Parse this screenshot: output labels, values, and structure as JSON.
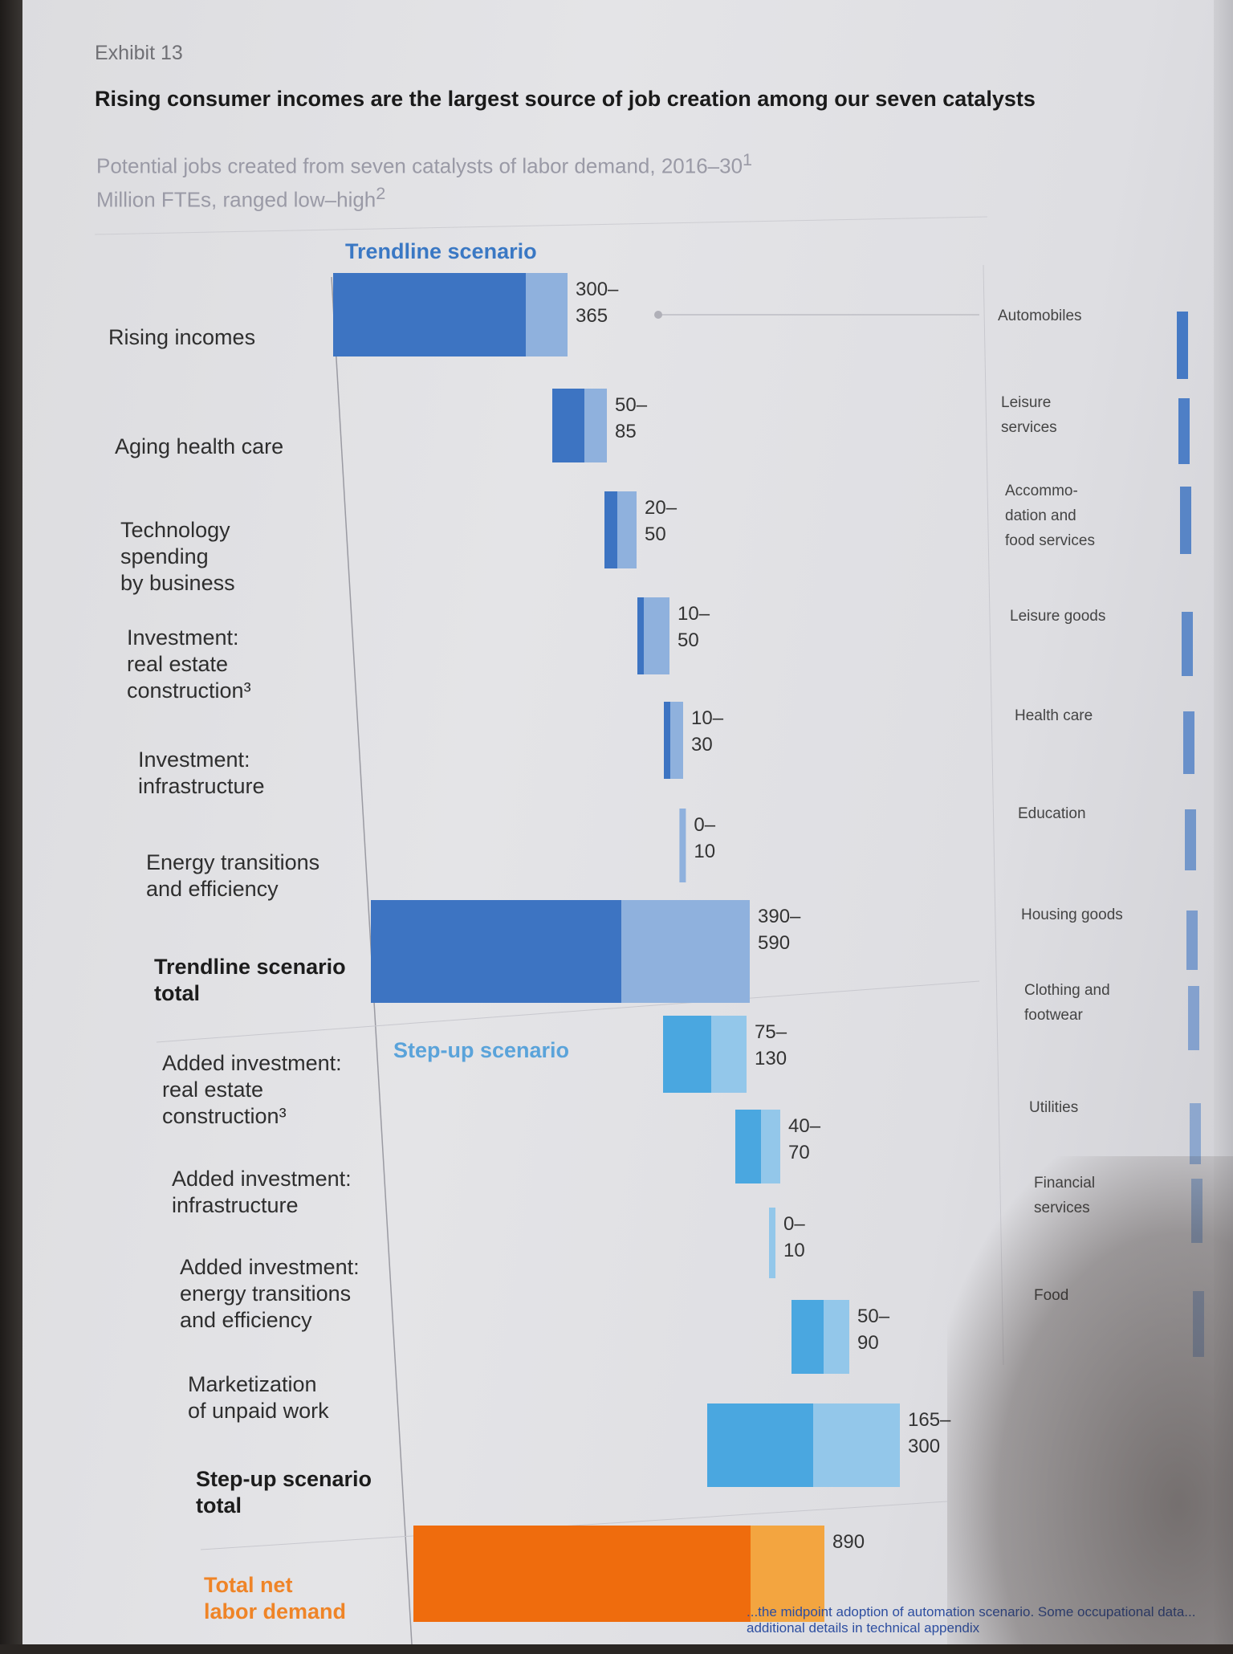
{
  "exhibit": "Exhibit 13",
  "title": "Rising consumer incomes are the largest source of job creation among our seven catalysts",
  "subtitle_line1": "Potential jobs created from seven catalysts of labor demand, 2016–30",
  "subtitle_sup1": "1",
  "subtitle_line2": "Million FTEs, ranged low–high",
  "subtitle_sup2": "2",
  "trendline_label": "Trendline scenario",
  "stepup_label": "Step-up scenario",
  "colors": {
    "trend_dark": "#3d74c2",
    "trend_light": "#8fb1dd",
    "step_dark": "#4aa7e0",
    "step_light": "#93c7ea",
    "net_dark": "#ef6c0d",
    "net_light": "#f3a540"
  },
  "chart_data": {
    "type": "bar",
    "orientation": "horizontal waterfall",
    "unit": "Million FTEs",
    "rows": [
      {
        "label": "Rising incomes",
        "low": 300,
        "high": 365,
        "range_label": "300–\n365",
        "group": "trend"
      },
      {
        "label": "Aging health care",
        "low": 50,
        "high": 85,
        "range_label": "50–\n85",
        "group": "trend"
      },
      {
        "label": "Technology\nspending\nby business",
        "low": 20,
        "high": 50,
        "range_label": "20–\n50",
        "group": "trend"
      },
      {
        "label": "Investment:\nreal estate\nconstruction³",
        "low": 10,
        "high": 50,
        "range_label": "10–\n50",
        "group": "trend"
      },
      {
        "label": "Investment:\ninfrastructure",
        "low": 10,
        "high": 30,
        "range_label": "10–\n30",
        "group": "trend"
      },
      {
        "label": "Energy transitions\nand efficiency",
        "low": 0,
        "high": 10,
        "range_label": "0–\n10",
        "group": "trend"
      },
      {
        "label": "Trendline scenario\ntotal",
        "low": 390,
        "high": 590,
        "range_label": "390–\n590",
        "group": "trend_total"
      },
      {
        "label": "Added investment:\nreal estate\nconstruction³",
        "low": 75,
        "high": 130,
        "range_label": "75–\n130",
        "group": "step"
      },
      {
        "label": "Added investment:\ninfrastructure",
        "low": 40,
        "high": 70,
        "range_label": "40–\n70",
        "group": "step"
      },
      {
        "label": "Added investment:\nenergy transitions\nand efficiency",
        "low": 0,
        "high": 10,
        "range_label": "0–\n10",
        "group": "step"
      },
      {
        "label": "Marketization\nof unpaid work",
        "low": 50,
        "high": 90,
        "range_label": "50–\n90",
        "group": "step"
      },
      {
        "label": "Step-up scenario\ntotal",
        "low": 165,
        "high": 300,
        "range_label": "165–\n300",
        "group": "step_total"
      },
      {
        "label": "Total net\nlabor demand",
        "low": null,
        "high": 890,
        "range_label": "890",
        "group": "net_total"
      }
    ],
    "right_panel_sectors": [
      "Automobiles",
      "Leisure\nservices",
      "Accommo-\ndation and\nfood services",
      "Leisure goods",
      "Health care",
      "Education",
      "Housing goods",
      "Clothing and\nfootwear",
      "Utilities",
      "Financial\nservices",
      "Food"
    ]
  },
  "footnote": "...the midpoint adoption of automation scenario. Some occupational data... additional details in technical appendix"
}
